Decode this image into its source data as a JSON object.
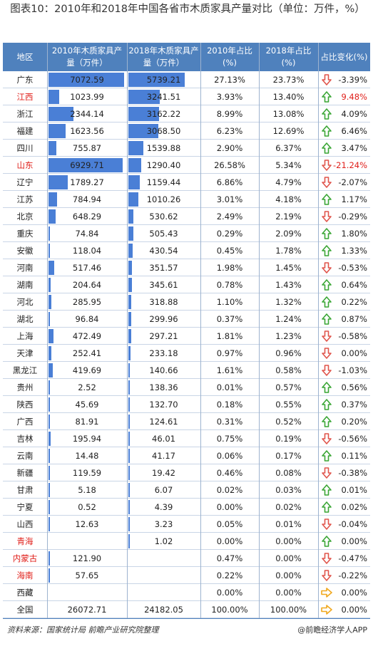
{
  "title": "图表10：2010年和2018年中国各省市木质家具产量对比（单位：万件，%）",
  "headers": [
    "地区",
    "2010年木质家具产量（万件）",
    "2018年木质家具产量（万件）",
    "2010年占比(%)",
    "2018年占比(%)",
    "占比变化(%)"
  ],
  "rows": [
    {
      "region": "广东",
      "v2010": "7072.59",
      "v2018": "5739.21",
      "p2010": "27.13%",
      "p2018": "23.73%",
      "dir": "down",
      "chg": "-3.39%",
      "red_region": false,
      "red_chg": false
    },
    {
      "region": "江西",
      "v2010": "1023.99",
      "v2018": "3241.51",
      "p2010": "3.93%",
      "p2018": "13.40%",
      "dir": "up",
      "chg": "9.48%",
      "red_region": true,
      "red_chg": true
    },
    {
      "region": "浙江",
      "v2010": "2344.14",
      "v2018": "3162.22",
      "p2010": "8.99%",
      "p2018": "13.08%",
      "dir": "up",
      "chg": "4.09%",
      "red_region": false,
      "red_chg": false
    },
    {
      "region": "福建",
      "v2010": "1623.56",
      "v2018": "3068.50",
      "p2010": "6.23%",
      "p2018": "12.69%",
      "dir": "up",
      "chg": "6.46%",
      "red_region": false,
      "red_chg": false
    },
    {
      "region": "四川",
      "v2010": "755.87",
      "v2018": "1539.88",
      "p2010": "2.90%",
      "p2018": "6.37%",
      "dir": "up",
      "chg": "3.47%",
      "red_region": false,
      "red_chg": false
    },
    {
      "region": "山东",
      "v2010": "6929.71",
      "v2018": "1290.40",
      "p2010": "26.58%",
      "p2018": "5.34%",
      "dir": "down",
      "chg": "-21.24%",
      "red_region": true,
      "red_chg": true
    },
    {
      "region": "辽宁",
      "v2010": "1789.27",
      "v2018": "1159.44",
      "p2010": "6.86%",
      "p2018": "4.79%",
      "dir": "down",
      "chg": "-2.07%",
      "red_region": false,
      "red_chg": false
    },
    {
      "region": "江苏",
      "v2010": "784.94",
      "v2018": "1010.26",
      "p2010": "3.01%",
      "p2018": "4.18%",
      "dir": "up",
      "chg": "1.17%",
      "red_region": false,
      "red_chg": false
    },
    {
      "region": "北京",
      "v2010": "648.29",
      "v2018": "530.62",
      "p2010": "2.49%",
      "p2018": "2.19%",
      "dir": "down",
      "chg": "-0.29%",
      "red_region": false,
      "red_chg": false
    },
    {
      "region": "重庆",
      "v2010": "74.84",
      "v2018": "505.43",
      "p2010": "0.29%",
      "p2018": "2.09%",
      "dir": "up",
      "chg": "1.80%",
      "red_region": false,
      "red_chg": false
    },
    {
      "region": "安徽",
      "v2010": "118.04",
      "v2018": "430.54",
      "p2010": "0.45%",
      "p2018": "1.78%",
      "dir": "up",
      "chg": "1.33%",
      "red_region": false,
      "red_chg": false
    },
    {
      "region": "河南",
      "v2010": "517.46",
      "v2018": "351.57",
      "p2010": "1.98%",
      "p2018": "1.45%",
      "dir": "down",
      "chg": "-0.53%",
      "red_region": false,
      "red_chg": false
    },
    {
      "region": "湖南",
      "v2010": "204.64",
      "v2018": "345.61",
      "p2010": "0.78%",
      "p2018": "1.43%",
      "dir": "up",
      "chg": "0.64%",
      "red_region": false,
      "red_chg": false
    },
    {
      "region": "河北",
      "v2010": "285.95",
      "v2018": "318.88",
      "p2010": "1.10%",
      "p2018": "1.32%",
      "dir": "up",
      "chg": "0.22%",
      "red_region": false,
      "red_chg": false
    },
    {
      "region": "湖北",
      "v2010": "96.84",
      "v2018": "299.96",
      "p2010": "0.37%",
      "p2018": "1.24%",
      "dir": "up",
      "chg": "0.87%",
      "red_region": false,
      "red_chg": false
    },
    {
      "region": "上海",
      "v2010": "472.49",
      "v2018": "297.21",
      "p2010": "1.81%",
      "p2018": "1.23%",
      "dir": "down",
      "chg": "-0.58%",
      "red_region": false,
      "red_chg": false
    },
    {
      "region": "天津",
      "v2010": "252.41",
      "v2018": "233.18",
      "p2010": "0.97%",
      "p2018": "0.96%",
      "dir": "down",
      "chg": "0.00%",
      "red_region": false,
      "red_chg": false
    },
    {
      "region": "黑龙江",
      "v2010": "419.69",
      "v2018": "140.66",
      "p2010": "1.61%",
      "p2018": "0.58%",
      "dir": "down",
      "chg": "-1.03%",
      "red_region": false,
      "red_chg": false
    },
    {
      "region": "贵州",
      "v2010": "2.52",
      "v2018": "138.36",
      "p2010": "0.01%",
      "p2018": "0.57%",
      "dir": "up",
      "chg": "0.56%",
      "red_region": false,
      "red_chg": false
    },
    {
      "region": "陕西",
      "v2010": "45.69",
      "v2018": "132.70",
      "p2010": "0.18%",
      "p2018": "0.55%",
      "dir": "up",
      "chg": "0.37%",
      "red_region": false,
      "red_chg": false
    },
    {
      "region": "广西",
      "v2010": "81.91",
      "v2018": "124.61",
      "p2010": "0.31%",
      "p2018": "0.52%",
      "dir": "up",
      "chg": "0.20%",
      "red_region": false,
      "red_chg": false
    },
    {
      "region": "吉林",
      "v2010": "195.94",
      "v2018": "46.01",
      "p2010": "0.75%",
      "p2018": "0.19%",
      "dir": "down",
      "chg": "-0.56%",
      "red_region": false,
      "red_chg": false
    },
    {
      "region": "云南",
      "v2010": "14.48",
      "v2018": "41.17",
      "p2010": "0.06%",
      "p2018": "0.17%",
      "dir": "up",
      "chg": "0.11%",
      "red_region": false,
      "red_chg": false
    },
    {
      "region": "新疆",
      "v2010": "119.59",
      "v2018": "19.42",
      "p2010": "0.46%",
      "p2018": "0.08%",
      "dir": "down",
      "chg": "-0.38%",
      "red_region": false,
      "red_chg": false
    },
    {
      "region": "甘肃",
      "v2010": "5.18",
      "v2018": "6.07",
      "p2010": "0.02%",
      "p2018": "0.03%",
      "dir": "up",
      "chg": "0.01%",
      "red_region": false,
      "red_chg": false
    },
    {
      "region": "宁夏",
      "v2010": "0.52",
      "v2018": "4.39",
      "p2010": "0.00%",
      "p2018": "0.02%",
      "dir": "up",
      "chg": "0.02%",
      "red_region": false,
      "red_chg": false
    },
    {
      "region": "山西",
      "v2010": "12.63",
      "v2018": "3.23",
      "p2010": "0.05%",
      "p2018": "0.01%",
      "dir": "down",
      "chg": "-0.04%",
      "red_region": false,
      "red_chg": false
    },
    {
      "region": "青海",
      "v2010": "",
      "v2018": "1.02",
      "p2010": "0.00%",
      "p2018": "0.00%",
      "dir": "up",
      "chg": "0.00%",
      "red_region": true,
      "red_chg": false
    },
    {
      "region": "内蒙古",
      "v2010": "121.90",
      "v2018": "",
      "p2010": "0.47%",
      "p2018": "0.00%",
      "dir": "down",
      "chg": "-0.47%",
      "red_region": true,
      "red_chg": false
    },
    {
      "region": "海南",
      "v2010": "57.65",
      "v2018": "",
      "p2010": "0.22%",
      "p2018": "0.00%",
      "dir": "down",
      "chg": "-0.22%",
      "red_region": true,
      "red_chg": false
    },
    {
      "region": "西藏",
      "v2010": "",
      "v2018": "",
      "p2010": "0.00%",
      "p2018": "0.00%",
      "dir": "right",
      "chg": "0.00%",
      "red_region": false,
      "red_chg": false
    },
    {
      "region": "全国",
      "v2010": "26072.71",
      "v2018": "24182.05",
      "p2010": "100.00%",
      "p2018": "100.00%",
      "dir": "right",
      "chg": "0.00%",
      "red_region": false,
      "red_chg": false,
      "no_bar": true
    }
  ],
  "footer": {
    "source": "资料来源：国家统计局 前瞻产业研究院整理",
    "brand": "@前瞻经济学人APP"
  },
  "colors": {
    "header_bg": "#4f81bd",
    "bar": "#4a7fd6",
    "up": "#3aa635",
    "down": "#e0544b",
    "flat": "#f0a81e",
    "red_text": "#e0201b"
  },
  "bar_scale_max": 7072.59
}
